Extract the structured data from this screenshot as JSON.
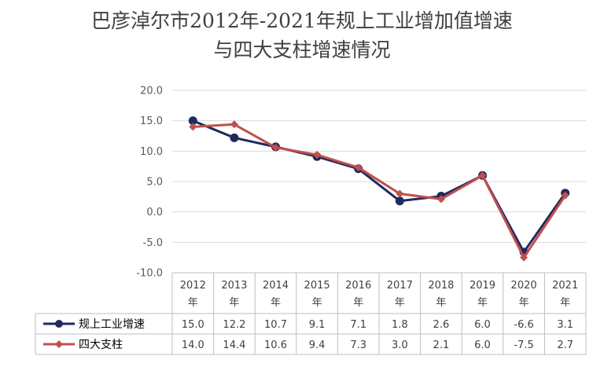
{
  "chart_data": {
    "type": "line",
    "title_line1": "巴彦淖尔市2012年-2021年规上工业增加值增速",
    "title_line2": "与四大支柱增速情况",
    "categories": [
      [
        "2012",
        "年"
      ],
      [
        "2013",
        "年"
      ],
      [
        "2014",
        "年"
      ],
      [
        "2015",
        "年"
      ],
      [
        "2016",
        "年"
      ],
      [
        "2017",
        "年"
      ],
      [
        "2018",
        "年"
      ],
      [
        "2019",
        "年"
      ],
      [
        "2020",
        "年"
      ],
      [
        "2021",
        "年"
      ]
    ],
    "y_ticks": [
      "20.0",
      "15.0",
      "10.0",
      "5.0",
      "0.0",
      "-5.0",
      "-10.0"
    ],
    "ylim": [
      -10,
      20
    ],
    "grid": true,
    "legend": "data-table",
    "series": [
      {
        "name": "规上工业增速",
        "color": "#1f2a5e",
        "marker": "circle",
        "values": [
          15.0,
          12.2,
          10.7,
          9.1,
          7.1,
          1.8,
          2.6,
          6.0,
          -6.6,
          3.1
        ],
        "labels": [
          "15.0",
          "12.2",
          "10.7",
          "9.1",
          "7.1",
          "1.8",
          "2.6",
          "6.0",
          "-6.6",
          "3.1"
        ]
      },
      {
        "name": "四大支柱",
        "color": "#c0504d",
        "marker": "diamond",
        "values": [
          14.0,
          14.4,
          10.6,
          9.4,
          7.3,
          3.0,
          2.1,
          6.0,
          -7.5,
          2.7
        ],
        "labels": [
          "14.0",
          "14.4",
          "10.6",
          "9.4",
          "7.3",
          "3.0",
          "2.1",
          "6.0",
          "-7.5",
          "2.7"
        ]
      }
    ]
  }
}
